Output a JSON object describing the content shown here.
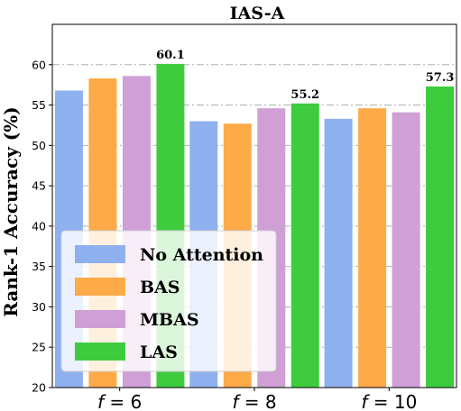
{
  "chart_data": {
    "type": "bar",
    "title": "IAS-A",
    "ylabel": "Rank-1 Accuracy (%)",
    "xlabel": "",
    "ylim": [
      20,
      65
    ],
    "yticks": [
      20,
      25,
      30,
      35,
      40,
      45,
      50,
      55,
      60
    ],
    "grid": "horizontal dash-dot",
    "legend_position": "lower-left",
    "categories": [
      {
        "prefix": "f",
        "suffix": " = 6"
      },
      {
        "prefix": "f",
        "suffix": " = 8"
      },
      {
        "prefix": "f",
        "suffix": " = 10"
      }
    ],
    "series": [
      {
        "name": "No Attention",
        "color": "#8fb0ef",
        "values": [
          56.8,
          53.0,
          53.3
        ]
      },
      {
        "name": "BAS",
        "color": "#fdaa48",
        "values": [
          58.3,
          52.7,
          54.6
        ]
      },
      {
        "name": "MBAS",
        "color": "#cf9fd6",
        "values": [
          58.6,
          54.6,
          54.1
        ]
      },
      {
        "name": "LAS",
        "color": "#3ecc3e",
        "values": [
          60.1,
          55.2,
          57.3
        ]
      }
    ],
    "data_labels": [
      {
        "category_index": 0,
        "series_index": 3,
        "text": "60.1"
      },
      {
        "category_index": 1,
        "series_index": 3,
        "text": "55.2"
      },
      {
        "category_index": 2,
        "series_index": 3,
        "text": "57.3"
      }
    ]
  }
}
